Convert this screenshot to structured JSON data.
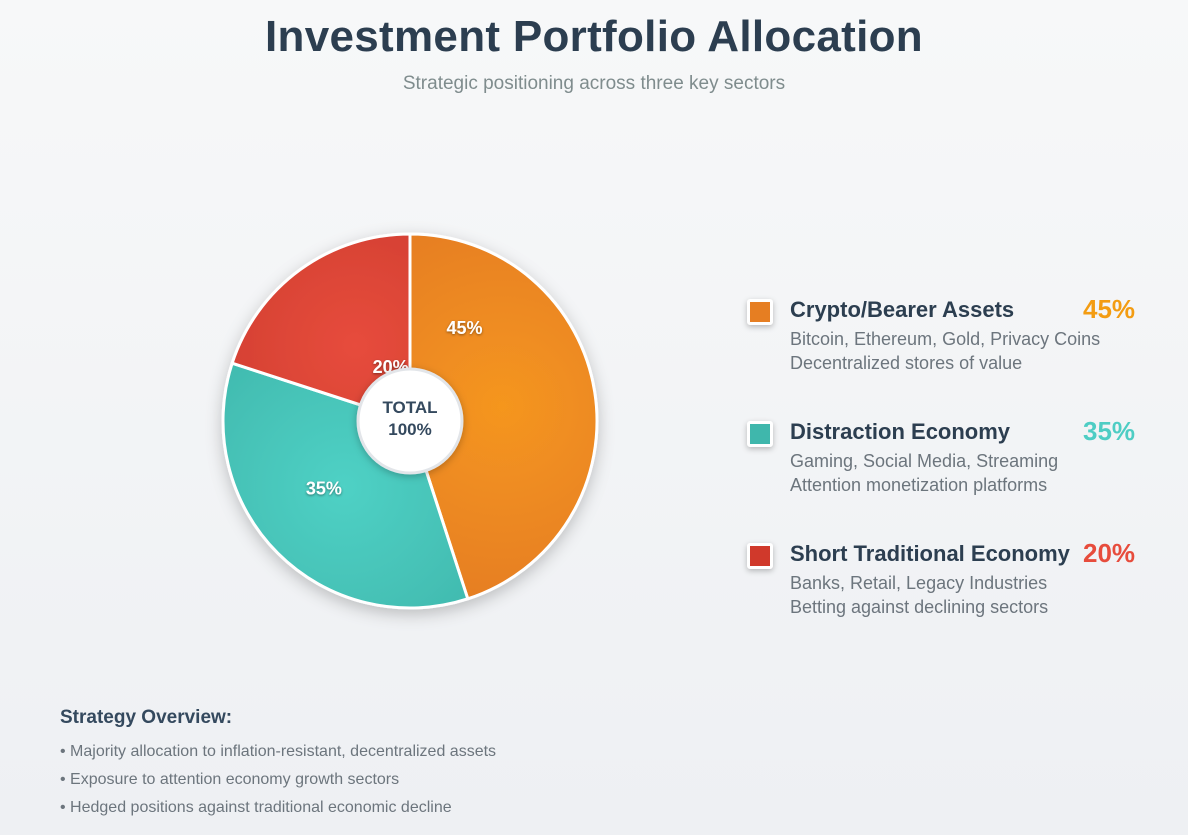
{
  "header": {
    "title": "Investment Portfolio Allocation",
    "subtitle": "Strategic positioning across three key sectors"
  },
  "chart_data": {
    "type": "pie",
    "center_label": [
      "TOTAL",
      "100%"
    ],
    "slices": [
      {
        "name": "Crypto/Bearer Assets",
        "label": "45%",
        "value": 45,
        "color": "#e67e22",
        "highlight": "#f5961f",
        "text_color": "#f39c12"
      },
      {
        "name": "Distraction Economy",
        "label": "35%",
        "value": 35,
        "color": "#3fb7ac",
        "highlight": "#4fd1c5",
        "text_color": "#4ecdc4"
      },
      {
        "name": "Short Traditional Economy",
        "label": "20%",
        "value": 20,
        "color": "#cc3b2f",
        "highlight": "#e74c3c",
        "text_color": "#e74c3c"
      }
    ]
  },
  "legend": [
    {
      "name": "Crypto/Bearer Assets",
      "pct": "45%",
      "desc1": "Bitcoin, Ethereum, Gold, Privacy Coins",
      "desc2": "Decentralized stores of value",
      "color": "#e67e22",
      "pct_color": "#f39c12"
    },
    {
      "name": "Distraction Economy",
      "pct": "35%",
      "desc1": "Gaming, Social Media, Streaming",
      "desc2": "Attention monetization platforms",
      "color": "#3fb7ac",
      "pct_color": "#4ecdc4"
    },
    {
      "name": "Short Traditional Economy",
      "pct": "20%",
      "desc1": "Banks, Retail, Legacy Industries",
      "desc2": "Betting against declining sectors",
      "color": "#d0392b",
      "pct_color": "#e74c3c"
    }
  ],
  "strategy": {
    "title": "Strategy Overview:",
    "items": [
      "• Majority allocation to inflation-resistant, decentralized assets",
      "• Exposure to attention economy growth sectors",
      "• Hedged positions against traditional economic decline"
    ]
  }
}
